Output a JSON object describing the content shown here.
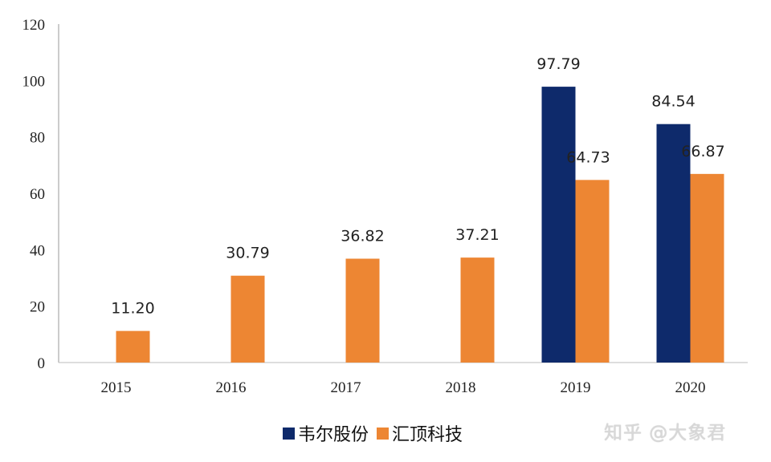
{
  "chart_data": {
    "type": "bar",
    "categories": [
      "2015",
      "2016",
      "2017",
      "2018",
      "2019",
      "2020"
    ],
    "series": [
      {
        "name": "韦尔股份",
        "color": "#0e2a6b",
        "values": [
          null,
          null,
          null,
          null,
          97.79,
          84.54
        ],
        "labels": [
          "",
          "",
          "",
          "",
          "97.79",
          "84.54"
        ]
      },
      {
        "name": "汇顶科技",
        "color": "#ed8633",
        "values": [
          11.2,
          30.79,
          36.82,
          37.21,
          64.73,
          66.87
        ],
        "labels": [
          "11.20",
          "30.79",
          "36.82",
          "37.21",
          "64.73",
          "66.87"
        ]
      }
    ],
    "ylim": [
      0,
      120
    ],
    "yticks": [
      "0",
      "20",
      "40",
      "60",
      "80",
      "100",
      "120"
    ],
    "grid": false,
    "legend": "bottom"
  },
  "watermark": "知乎 @大象君"
}
